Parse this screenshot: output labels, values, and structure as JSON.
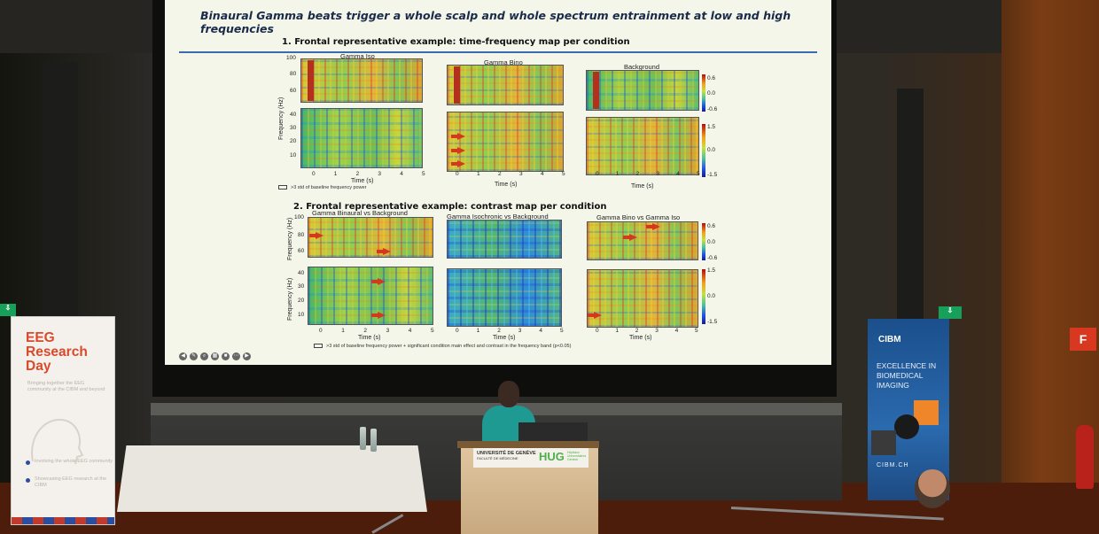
{
  "slide": {
    "title": "Binaural Gamma beats trigger a whole scalp and whole spectrum entrainment at low and high frequencies",
    "section1": "1. Frontal representative example: time-frequency map per condition",
    "section2": "2. Frontal representative example: contrast map per condition",
    "panels_top": [
      "Gamma Iso",
      "Gamma Bino",
      "Background"
    ],
    "panels_bottom": [
      "Gamma Binaural vs Background",
      "Gamma Isochronic vs Background",
      "Gamma Bino vs Gamma Iso"
    ],
    "y_axis_label": "Frequency (Hz)",
    "x_axis_label": "Time (s)",
    "y_ticks_high_top": [
      "100",
      "80",
      "60"
    ],
    "y_ticks_low_top": [
      "40",
      "30",
      "20",
      "10"
    ],
    "y_ticks_high_bottom": [
      "100",
      "80",
      "60"
    ],
    "y_ticks_low_bottom": [
      "40",
      "30",
      "20",
      "10"
    ],
    "x_ticks": [
      "0",
      "1",
      "2",
      "3",
      "4",
      "5"
    ],
    "cbar_ticks_top_high": [
      "0.6",
      "0.0",
      "-0.6"
    ],
    "cbar_ticks_top_low": [
      "1.5",
      "0.0",
      "-1.5"
    ],
    "cbar_ticks_bottom_high": [
      "0.6",
      "0.0",
      "-0.6"
    ],
    "cbar_ticks_bottom_low": [
      "1.5",
      "0.0",
      "-1.5"
    ],
    "legend1": ">3 std of baseline frequency power",
    "legend2": ">3 std of baseline frequency power + significant condition main effect and contrast in the frequency band (p<0.05)"
  },
  "left_banner": {
    "title": "EEG Research Day",
    "tagline": "Bringing together the EEG community at the CIBM and beyond",
    "bullet1": "Involving the whole EEG community",
    "bullet2": "Showcasing EEG research at the CIBM"
  },
  "right_banner": {
    "logo": "CIBM",
    "slogan": "EXCELLENCE IN BIOMEDICAL IMAGING",
    "website": "CIBM.CH"
  },
  "podium": {
    "university": "UNIVERSITÉ DE GENÈVE",
    "faculty": "FACULTÉ DE MÉDECINE",
    "hug": "HUG",
    "hug_sub": "Hôpitaux Universitaires Genève"
  },
  "fire_sign": "F",
  "colors": {
    "slide_bg": "#f3f6e9",
    "title_color": "#1a2a4a",
    "accent_red": "#d9492a",
    "cibm_blue": "#2a6aae",
    "hug_green": "#4db04a"
  }
}
